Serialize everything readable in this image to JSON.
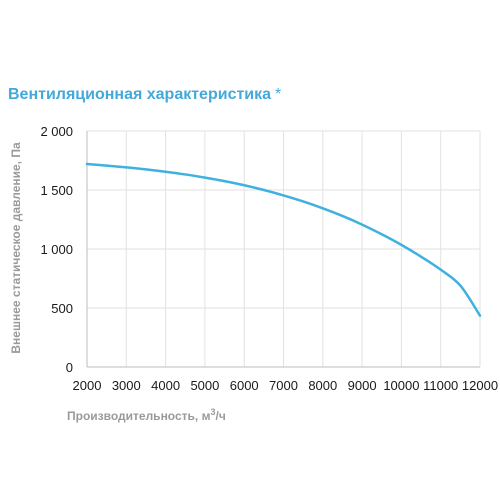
{
  "chart_data": {
    "type": "line",
    "title": "Вентиляционная характеристика",
    "title_mark": "*",
    "xlabel": "Производительность, м",
    "xlabel_sup": "3",
    "xlabel_tail": "/ч",
    "ylabel": "Внешнее статическое давление, Па",
    "xlim": [
      2000,
      12000
    ],
    "ylim": [
      0,
      2000
    ],
    "x_ticks": [
      2000,
      3000,
      4000,
      5000,
      6000,
      7000,
      8000,
      9000,
      10000,
      11000,
      12000
    ],
    "x_tick_labels": [
      "2000",
      "3000",
      "4000",
      "5000",
      "6000",
      "7000",
      "8000",
      "9000",
      "10000",
      "11000",
      "12000"
    ],
    "y_ticks": [
      0,
      500,
      1000,
      1500,
      2000
    ],
    "y_tick_labels": [
      "0",
      "500",
      "1 000",
      "1 500",
      "2 000"
    ],
    "grid": true,
    "series": [
      {
        "color": "#3fb1de",
        "x": [
          2000,
          2500,
          3000,
          3500,
          4000,
          4500,
          5000,
          5500,
          6000,
          6500,
          7000,
          7500,
          8000,
          8500,
          9000,
          9500,
          10000,
          10500,
          11000,
          11500,
          12000
        ],
        "y": [
          1720,
          1707,
          1692,
          1675,
          1655,
          1632,
          1605,
          1575,
          1540,
          1500,
          1454,
          1403,
          1345,
          1280,
          1207,
          1125,
          1035,
          935,
          825,
          690,
          435
        ]
      }
    ]
  }
}
